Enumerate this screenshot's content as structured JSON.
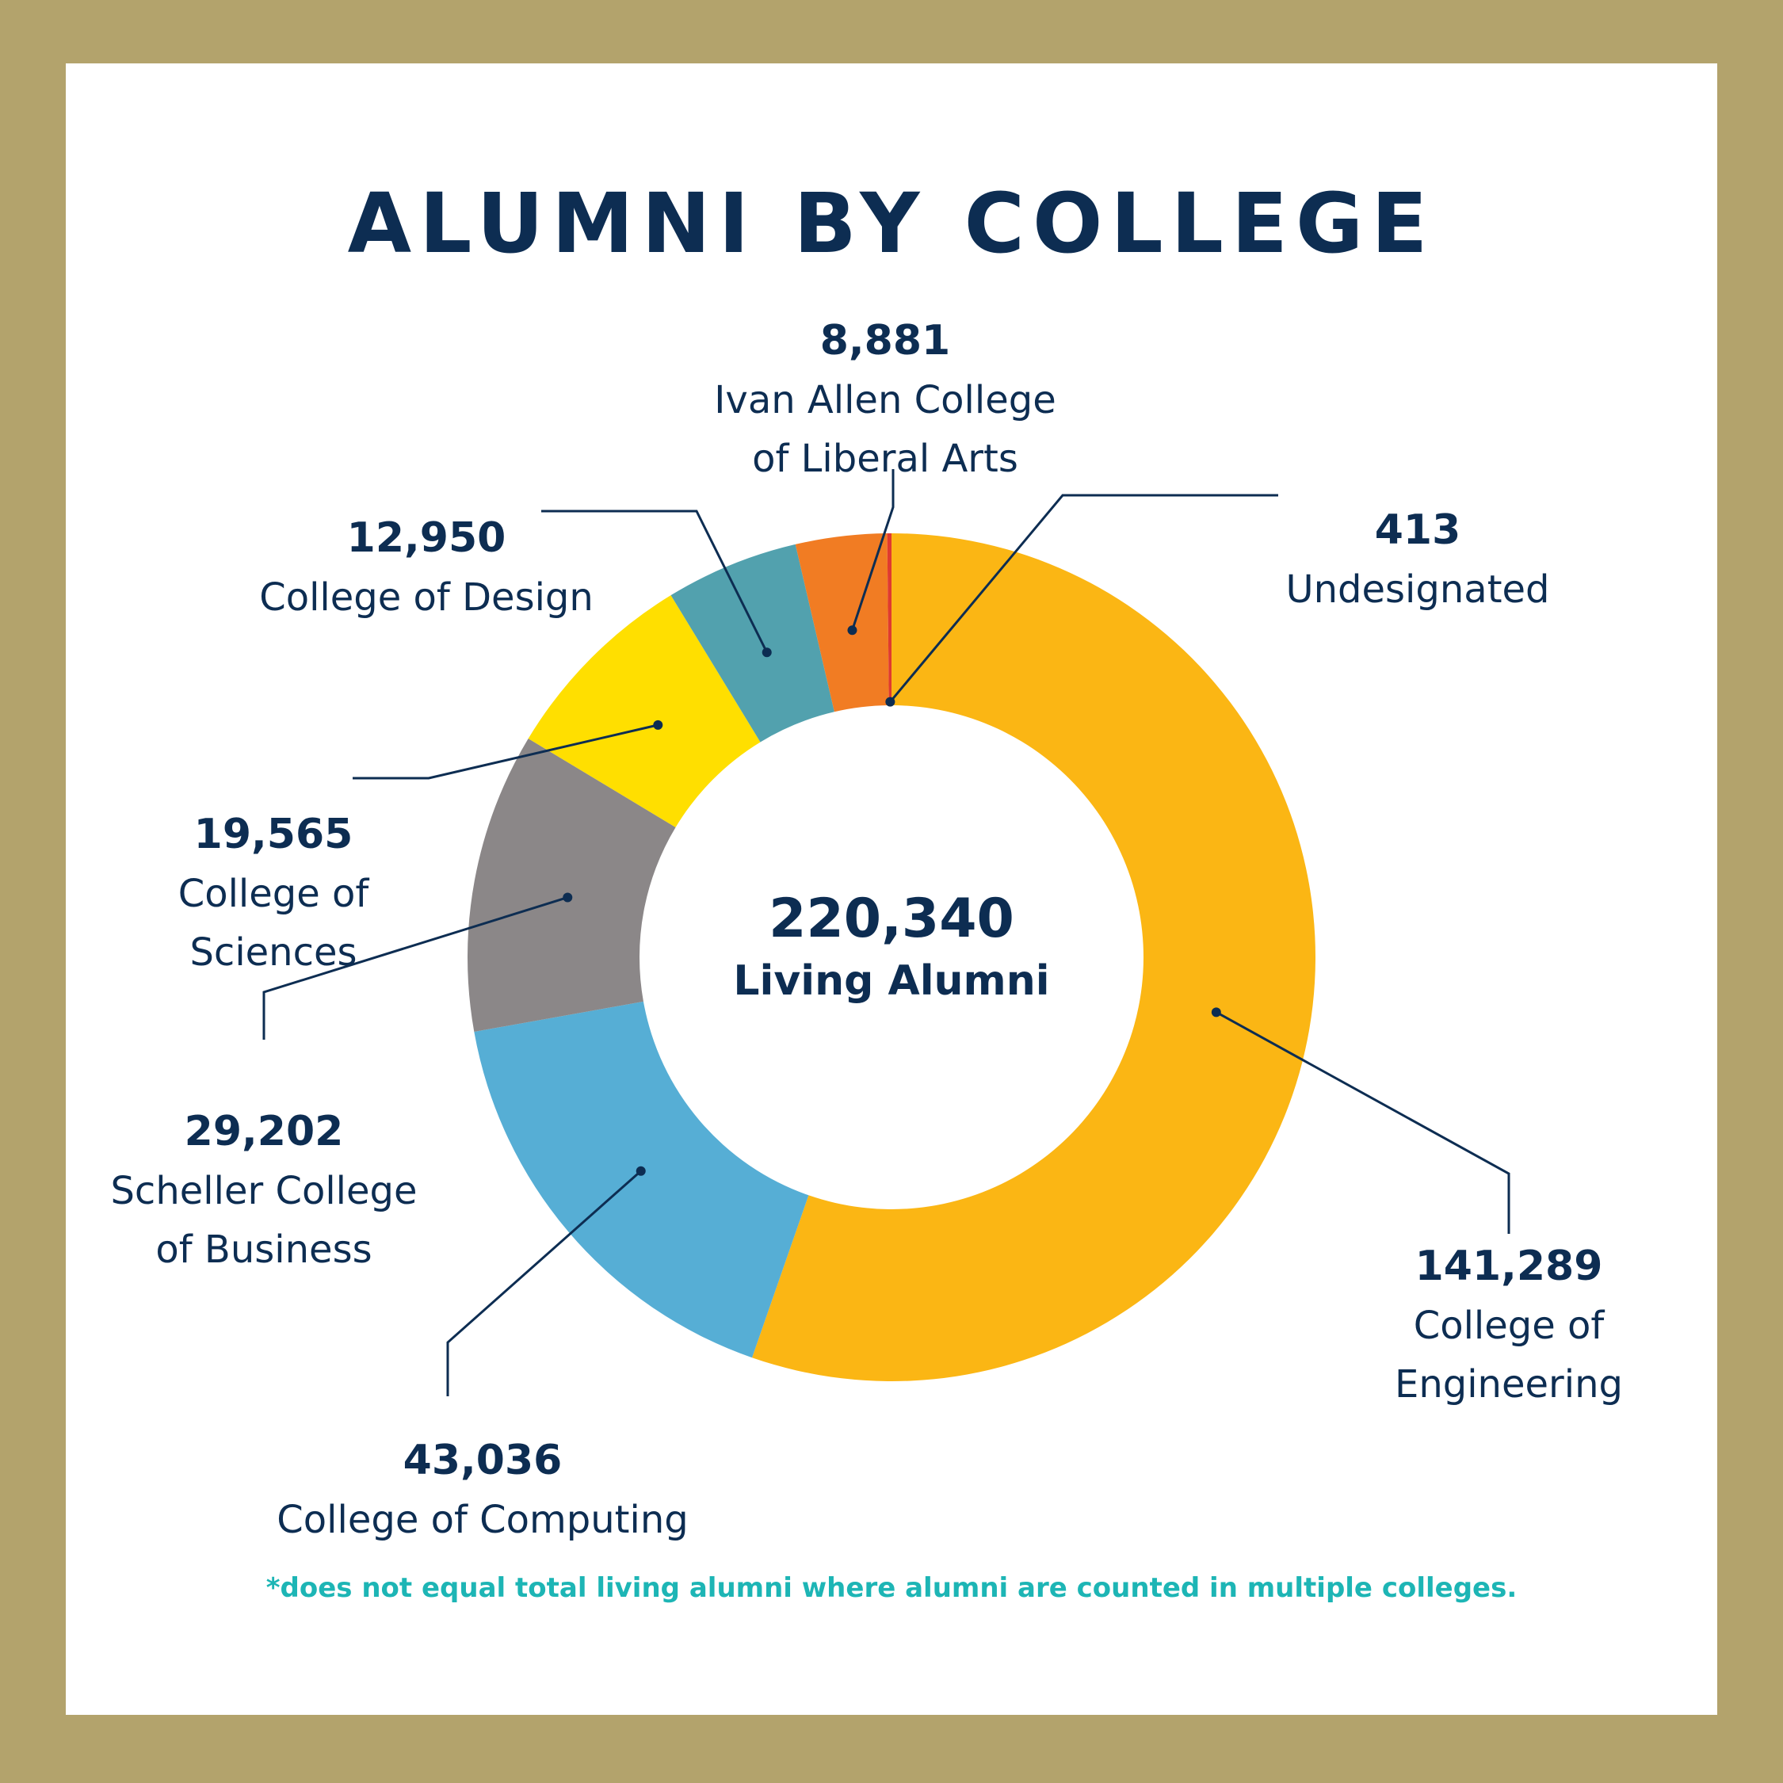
{
  "chart_data": {
    "type": "pie",
    "title": "ALUMNI BY COLLEGE",
    "center": {
      "value": "220,340",
      "label": "Living Alumni"
    },
    "footnote": "*does not equal total living alumni where  alumni are counted in multiple colleges.",
    "colors": {
      "background_frame": "#b3a36c",
      "text": "#0d2d52",
      "leader": "#0d2d52",
      "footnote": "#1db5b5"
    },
    "slices": [
      {
        "value": 141289,
        "value_label": "141,289",
        "label_lines": [
          "College of",
          "Engineering"
        ],
        "color": "#fbb614"
      },
      {
        "value": 43036,
        "value_label": "43,036",
        "label_lines": [
          "College of Computing"
        ],
        "color": "#56aed5"
      },
      {
        "value": 29202,
        "value_label": "29,202",
        "label_lines": [
          "Scheller College",
          "of Business"
        ],
        "color": "#8b8788"
      },
      {
        "value": 19565,
        "value_label": "19,565",
        "label_lines": [
          "College of",
          "Sciences"
        ],
        "color": "#ffdf00"
      },
      {
        "value": 12950,
        "value_label": "12,950",
        "label_lines": [
          "College of Design"
        ],
        "color": "#52a1ae"
      },
      {
        "value": 8881,
        "value_label": "8,881",
        "label_lines": [
          "Ivan Allen College",
          "of Liberal Arts"
        ],
        "color": "#f17c23"
      },
      {
        "value": 413,
        "value_label": "413",
        "label_lines": [
          "Undesignated"
        ],
        "color": "#e03a2f"
      }
    ]
  }
}
